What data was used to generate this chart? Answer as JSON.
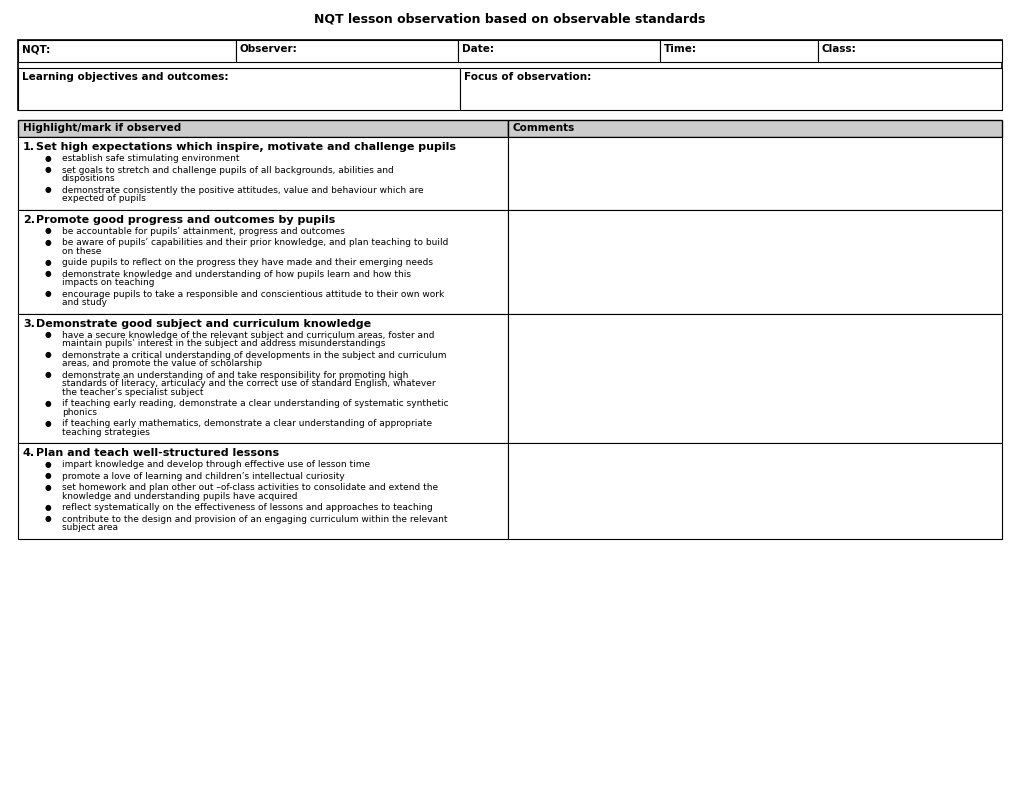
{
  "title": "NQT lesson observation based on observable standards",
  "bg_color": "#ffffff",
  "header_bg": "#cccccc",
  "row1_labels": [
    "NQT:",
    "Observer:",
    "Date:",
    "Time:",
    "Class:"
  ],
  "row2_labels": [
    "Learning objectives and outcomes:",
    "Focus of observation:"
  ],
  "col_header": [
    "Highlight/mark if observed",
    "Comments"
  ],
  "sections": [
    {
      "number": "1.",
      "title": "Set high expectations which inspire, motivate and challenge pupils",
      "bullets": [
        "establish safe stimulating environment",
        "set goals to stretch and challenge pupils of all backgrounds, abilities and\ndispositions",
        "demonstrate consistently the positive attitudes, value and behaviour which are\nexpected of pupils"
      ]
    },
    {
      "number": "2.",
      "title": "Promote good progress and outcomes by pupils",
      "bullets": [
        "be accountable for pupils’ attainment, progress and outcomes",
        "be aware of pupils’ capabilities and their prior knowledge, and plan teaching to build\non these",
        "guide pupils to reflect on the progress they have made and their emerging needs",
        "demonstrate knowledge and understanding of how pupils learn and how this\nimpacts on teaching",
        "encourage pupils to take a responsible and conscientious attitude to their own work\nand study"
      ]
    },
    {
      "number": "3.",
      "title": "Demonstrate good subject and curriculum knowledge",
      "bullets": [
        "have a secure knowledge of the relevant subject and curriculum areas, foster and\nmaintain pupils’ interest in the subject and address misunderstandings",
        "demonstrate a critical understanding of developments in the subject and curriculum\nareas, and promote the value of scholarship",
        "demonstrate an understanding of and take responsibility for promoting high\nstandards of literacy, articulacy and the correct use of standard English, whatever\nthe teacher’s specialist subject",
        "if teaching early reading, demonstrate a clear understanding of systematic synthetic\nphonics",
        "if teaching early mathematics, demonstrate a clear understanding of appropriate\nteaching strategies"
      ]
    },
    {
      "number": "4.",
      "title": "Plan and teach well-structured lessons",
      "bullets": [
        "impart knowledge and develop through effective use of lesson time",
        "promote a love of learning and children’s intellectual curiosity",
        "set homework and plan other out –of-class activities to consolidate and extend the\nknowledge and understanding pupils have acquired",
        "reflect systematically on the effectiveness of lessons and approaches to teaching",
        "contribute to the design and provision of an engaging curriculum within the relevant\nsubject area"
      ]
    }
  ]
}
